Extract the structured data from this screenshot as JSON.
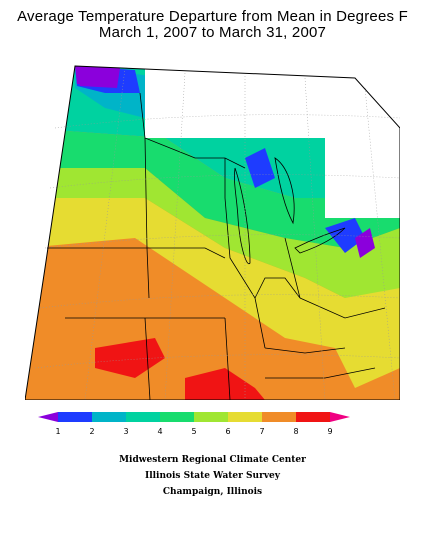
{
  "title": {
    "line1": "Average Temperature Departure from Mean in Degrees F",
    "line2": "March 1, 2007 to March 31, 2007"
  },
  "legend": {
    "labels": [
      "1",
      "2",
      "3",
      "4",
      "5",
      "6",
      "7",
      "8",
      "9"
    ],
    "colors": [
      "#8b00dc",
      "#1e3cff",
      "#00b4c8",
      "#00d2a0",
      "#18dc6e",
      "#a0e632",
      "#e6dc32",
      "#f08c28",
      "#f01414",
      "#f00082"
    ]
  },
  "credits": {
    "line1": "Midwestern Regional Climate Center",
    "line2": "Illinois State Water Survey",
    "line3": "Champaign, Illinois"
  }
}
